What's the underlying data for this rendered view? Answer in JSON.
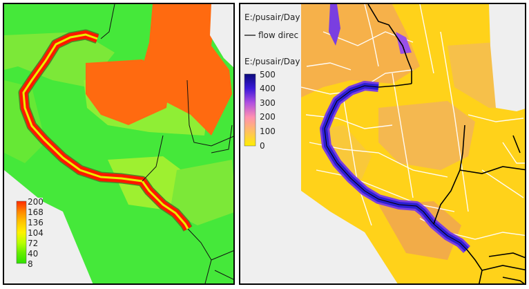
{
  "left_map": {
    "legend": {
      "labels": [
        "200",
        "168",
        "136",
        "104",
        "72",
        "40",
        "8"
      ],
      "colors": [
        "#ff2a00",
        "#ff8800",
        "#ffc400",
        "#fff200",
        "#b8ff00",
        "#66ee00",
        "#2ee000"
      ]
    },
    "colors": {
      "background": "#efefef",
      "base_green": "#45e83a",
      "light_green": "#8fee35",
      "yellow_green": "#b8f020",
      "orange": "#ff6a10",
      "river_red": "#ff1800",
      "river_core": "#fff000",
      "river_edge": "#4b8a2a",
      "network": "#111111"
    }
  },
  "right_map": {
    "layer_label_1": "E:/pusair/Day",
    "flow_legend_label": "flow direc",
    "layer_label_2": "E:/pusair/Day",
    "legend": {
      "labels": [
        "500",
        "400",
        "300",
        "200",
        "100",
        "0"
      ],
      "colors": [
        "#0a0a7a",
        "#3a18d8",
        "#b050e0",
        "#ff90b0",
        "#ffc060",
        "#ffee00"
      ]
    },
    "colors": {
      "background": "#efefef",
      "base": "#ffd21a",
      "tan": "#f6b14a",
      "roads": "#ffffff",
      "river_blue": "#2b1fd2",
      "river_purple": "#7a3ee0",
      "network": "#000000"
    }
  }
}
